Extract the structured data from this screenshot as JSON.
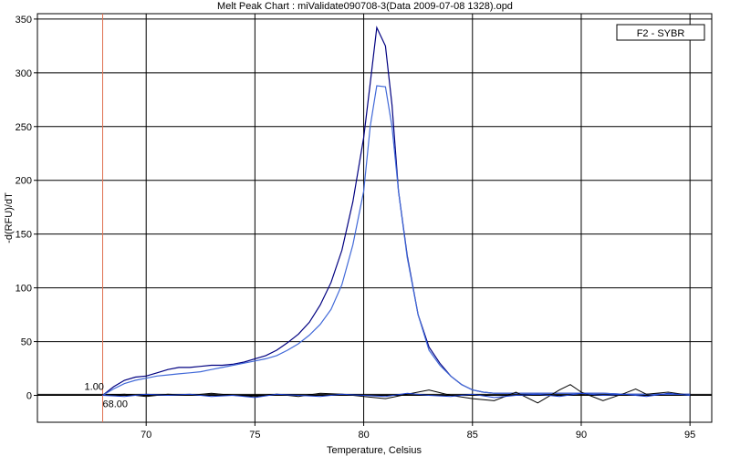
{
  "chart_data": {
    "type": "line",
    "title": "Melt Peak Chart : miValidate090708-3(Data 2009-07-08 1328).opd",
    "xlabel": "Temperature, Celsius",
    "ylabel": "-d(RFU)/dT",
    "xlim": [
      65,
      96
    ],
    "ylim": [
      -25,
      355
    ],
    "x_ticks": [
      70,
      75,
      80,
      85,
      90,
      95
    ],
    "y_ticks": [
      0,
      50,
      100,
      150,
      200,
      250,
      300,
      350
    ],
    "grid": true,
    "legend": {
      "position": "top-right",
      "label": "F2 - SYBR"
    },
    "marker": {
      "x": 68,
      "x_label": "68.00",
      "threshold": 1,
      "threshold_label": "1.00"
    },
    "colors": {
      "series_1": "#000080",
      "series_2": "#4169d8",
      "baseline_a": "#000000",
      "baseline_b": "#1a3fd0",
      "marker_line": "#e07050"
    },
    "series": [
      {
        "x": [
          68,
          68.5,
          69,
          69.5,
          70,
          70.5,
          71,
          71.5,
          72,
          72.5,
          73,
          73.5,
          74,
          74.5,
          75,
          75.5,
          76,
          76.5,
          77,
          77.5,
          78,
          78.5,
          79,
          79.5,
          80,
          80.3,
          80.6,
          81,
          81.3,
          81.6,
          82,
          82.5,
          83,
          83.5,
          84,
          84.5,
          85,
          85.5,
          86,
          87,
          88,
          89,
          90,
          91,
          92,
          93,
          94,
          95
        ],
        "y": [
          0,
          8,
          14,
          17,
          18,
          21,
          24,
          26,
          26,
          27,
          28,
          28,
          29,
          31,
          34,
          37,
          42,
          49,
          57,
          68,
          84,
          105,
          135,
          180,
          240,
          290,
          342,
          325,
          270,
          190,
          130,
          75,
          45,
          30,
          18,
          10,
          5,
          3,
          2,
          2,
          2,
          2,
          2,
          2,
          1,
          1,
          1,
          1
        ]
      },
      {
        "x": [
          68,
          68.5,
          69,
          69.5,
          70,
          70.5,
          71,
          71.5,
          72,
          72.5,
          73,
          73.5,
          74,
          74.5,
          75,
          75.5,
          76,
          76.5,
          77,
          77.5,
          78,
          78.5,
          79,
          79.5,
          80,
          80.3,
          80.6,
          81,
          81.3,
          81.6,
          82,
          82.5,
          83,
          83.5,
          84,
          84.5,
          85,
          85.5,
          86,
          87,
          88,
          89,
          90,
          91,
          92,
          93,
          94,
          95
        ],
        "y": [
          0,
          6,
          11,
          14,
          16,
          18,
          19,
          20,
          21,
          22,
          24,
          26,
          28,
          30,
          32,
          34,
          37,
          42,
          48,
          56,
          66,
          80,
          103,
          140,
          190,
          250,
          288,
          287,
          250,
          190,
          128,
          75,
          42,
          28,
          18,
          10,
          5,
          3,
          2,
          2,
          2,
          2,
          2,
          2,
          1,
          1,
          1,
          1
        ]
      },
      {
        "x": [
          68,
          69,
          70,
          71,
          72,
          73,
          74,
          75,
          76,
          77,
          78,
          79,
          80,
          81,
          82,
          83,
          84,
          85,
          86,
          87,
          88,
          89,
          89.5,
          90,
          91,
          92,
          92.5,
          93,
          94,
          95
        ],
        "y": [
          0,
          1,
          -1,
          1,
          0,
          2,
          0,
          -1,
          1,
          -1,
          2,
          1,
          -1,
          -3,
          1,
          5,
          0,
          -3,
          -5,
          3,
          -7,
          5,
          10,
          3,
          -5,
          2,
          6,
          1,
          3,
          0
        ]
      },
      {
        "x": [
          68,
          69,
          70,
          71,
          72,
          73,
          74,
          75,
          76,
          77,
          78,
          79,
          80,
          81,
          82,
          83,
          84,
          85,
          86,
          87,
          88,
          89,
          90,
          91,
          92,
          93,
          94,
          95
        ],
        "y": [
          0,
          -1,
          1,
          0,
          1,
          -1,
          0,
          -2,
          1,
          0,
          -1,
          1,
          0,
          -1,
          2,
          0,
          -1,
          1,
          -2,
          0,
          1,
          -1,
          2,
          0,
          1,
          -1,
          2,
          0
        ]
      }
    ]
  }
}
